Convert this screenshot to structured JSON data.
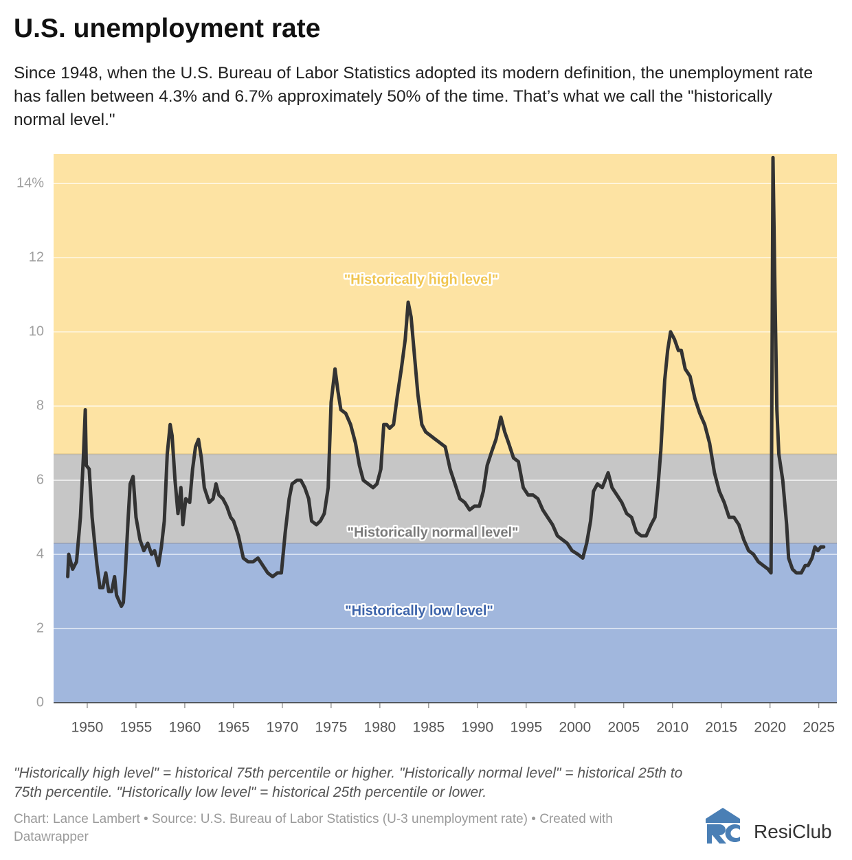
{
  "chart_data": {
    "type": "line",
    "title": "U.S. unemployment rate",
    "subtitle": "Since 1948, when the U.S. Bureau of Labor Statistics adopted its modern definition, the unemployment rate has fallen between 4.3% and 6.7% approximately 50% of the time. That’s what we call the \"historically normal level.\"",
    "notes": "\"Historically high level\" = historical 75th percentile or higher. \"Historically normal level\" = historical 25th to 75th percentile. \"Historically low level\" = historical 25th percentile or lower.",
    "source": "Chart: Lance Lambert • Source: U.S. Bureau of Labor Statistics (U-3 unemployment rate) • Created with Datawrapper",
    "brand": "ResiClub",
    "color": "#333333",
    "bands": [
      {
        "label": "\"Historically low level\"",
        "from": 0,
        "to": 4.3,
        "color": "#a1b7dd",
        "text_color": "#3d64aa"
      },
      {
        "label": "\"Historically normal level\"",
        "from": 4.3,
        "to": 6.7,
        "color": "#c6c6c6",
        "text_color": "#7a7a7a"
      },
      {
        "label": "\"Historically high level\"",
        "from": 6.7,
        "to": 14.8,
        "color": "#fde3a3",
        "text_color": "#f0c550"
      }
    ],
    "xlim": [
      1946.55,
      2026.85
    ],
    "ylim": [
      0,
      14.8
    ],
    "xticks": [
      1950,
      1955,
      1960,
      1965,
      1970,
      1975,
      1980,
      1985,
      1990,
      1995,
      2000,
      2005,
      2010,
      2015,
      2020,
      2025
    ],
    "yticks": [
      0,
      2,
      4,
      6,
      8,
      10,
      12,
      {
        "value": 14,
        "label": "14%"
      }
    ],
    "grid": true,
    "x": [
      1948.0,
      1948.1,
      1948.5,
      1948.9,
      1949.3,
      1949.6,
      1949.8,
      1949.9,
      1950.2,
      1950.5,
      1950.8,
      1951.0,
      1951.3,
      1951.6,
      1951.9,
      1952.2,
      1952.5,
      1952.8,
      1953.0,
      1953.5,
      1953.7,
      1953.9,
      1954.2,
      1954.4,
      1954.7,
      1955.0,
      1955.4,
      1955.8,
      1956.2,
      1956.6,
      1956.9,
      1957.3,
      1957.6,
      1957.9,
      1958.2,
      1958.5,
      1958.7,
      1959.0,
      1959.3,
      1959.6,
      1959.8,
      1960.1,
      1960.5,
      1960.8,
      1961.1,
      1961.4,
      1961.7,
      1962.0,
      1962.5,
      1962.9,
      1963.2,
      1963.5,
      1963.9,
      1964.3,
      1964.7,
      1965.0,
      1965.5,
      1966.0,
      1966.5,
      1967.0,
      1967.5,
      1968.0,
      1968.5,
      1969.0,
      1969.5,
      1969.9,
      1970.3,
      1970.7,
      1971.0,
      1971.5,
      1971.9,
      1972.3,
      1972.7,
      1973.0,
      1973.5,
      1973.9,
      1974.3,
      1974.7,
      1975.0,
      1975.4,
      1975.7,
      1976.0,
      1976.5,
      1977.0,
      1977.5,
      1977.9,
      1978.3,
      1978.8,
      1979.3,
      1979.7,
      1980.1,
      1980.4,
      1980.7,
      1981.0,
      1981.4,
      1981.8,
      1982.2,
      1982.6,
      1982.9,
      1983.2,
      1983.5,
      1983.9,
      1984.3,
      1984.7,
      1985.2,
      1985.7,
      1986.2,
      1986.7,
      1987.2,
      1987.7,
      1988.2,
      1988.7,
      1989.2,
      1989.7,
      1990.2,
      1990.6,
      1991.0,
      1991.5,
      1991.9,
      1992.4,
      1992.8,
      1993.2,
      1993.7,
      1994.2,
      1994.7,
      1995.2,
      1995.7,
      1996.2,
      1996.7,
      1997.2,
      1997.7,
      1998.2,
      1998.7,
      1999.2,
      1999.7,
      2000.3,
      2000.8,
      2001.2,
      2001.6,
      2001.9,
      2002.3,
      2002.8,
      2003.4,
      2003.8,
      2004.3,
      2004.8,
      2005.3,
      2005.8,
      2006.3,
      2006.8,
      2007.3,
      2007.8,
      2008.2,
      2008.5,
      2008.8,
      2009.2,
      2009.5,
      2009.8,
      2010.2,
      2010.6,
      2010.9,
      2011.3,
      2011.8,
      2012.3,
      2012.8,
      2013.3,
      2013.8,
      2014.3,
      2014.8,
      2015.3,
      2015.8,
      2016.3,
      2016.8,
      2017.3,
      2017.8,
      2018.3,
      2018.8,
      2019.3,
      2019.8,
      2020.1,
      2020.3,
      2020.5,
      2020.7,
      2020.9,
      2021.3,
      2021.7,
      2021.9,
      2022.3,
      2022.7,
      2023.2,
      2023.6,
      2023.9,
      2024.3,
      2024.6,
      2024.9,
      2025.2,
      2025.5
    ],
    "values": [
      3.4,
      4.0,
      3.6,
      3.8,
      5.0,
      6.6,
      7.9,
      6.4,
      6.3,
      5.0,
      4.2,
      3.7,
      3.1,
      3.1,
      3.5,
      3.0,
      3.0,
      3.4,
      2.9,
      2.6,
      2.7,
      3.5,
      5.0,
      5.9,
      6.1,
      5.0,
      4.4,
      4.1,
      4.3,
      4.0,
      4.1,
      3.7,
      4.2,
      4.9,
      6.7,
      7.5,
      7.2,
      6.0,
      5.1,
      5.8,
      4.8,
      5.5,
      5.4,
      6.3,
      6.9,
      7.1,
      6.6,
      5.8,
      5.4,
      5.5,
      5.9,
      5.6,
      5.5,
      5.3,
      5.0,
      4.9,
      4.5,
      3.9,
      3.8,
      3.8,
      3.9,
      3.7,
      3.5,
      3.4,
      3.5,
      3.5,
      4.6,
      5.5,
      5.9,
      6.0,
      6.0,
      5.8,
      5.5,
      4.9,
      4.8,
      4.9,
      5.1,
      5.8,
      8.1,
      9.0,
      8.4,
      7.9,
      7.8,
      7.5,
      7.0,
      6.4,
      6.0,
      5.9,
      5.8,
      5.9,
      6.3,
      7.5,
      7.5,
      7.4,
      7.5,
      8.3,
      9.0,
      9.8,
      10.8,
      10.4,
      9.5,
      8.3,
      7.5,
      7.3,
      7.2,
      7.1,
      7.0,
      6.9,
      6.3,
      5.9,
      5.5,
      5.4,
      5.2,
      5.3,
      5.3,
      5.7,
      6.4,
      6.8,
      7.1,
      7.7,
      7.3,
      7.0,
      6.6,
      6.5,
      5.8,
      5.6,
      5.6,
      5.5,
      5.2,
      5.0,
      4.8,
      4.5,
      4.4,
      4.3,
      4.1,
      4.0,
      3.9,
      4.3,
      4.9,
      5.7,
      5.9,
      5.8,
      6.2,
      5.8,
      5.6,
      5.4,
      5.1,
      5.0,
      4.6,
      4.5,
      4.5,
      4.8,
      5.0,
      5.8,
      6.8,
      8.7,
      9.5,
      10.0,
      9.8,
      9.5,
      9.5,
      9.0,
      8.8,
      8.2,
      7.8,
      7.5,
      7.0,
      6.2,
      5.7,
      5.4,
      5.0,
      5.0,
      4.8,
      4.4,
      4.1,
      4.0,
      3.8,
      3.7,
      3.6,
      3.5,
      14.7,
      11.1,
      7.9,
      6.7,
      6.0,
      4.8,
      3.9,
      3.6,
      3.5,
      3.5,
      3.7,
      3.7,
      3.9,
      4.2,
      4.1,
      4.2,
      4.2
    ]
  }
}
